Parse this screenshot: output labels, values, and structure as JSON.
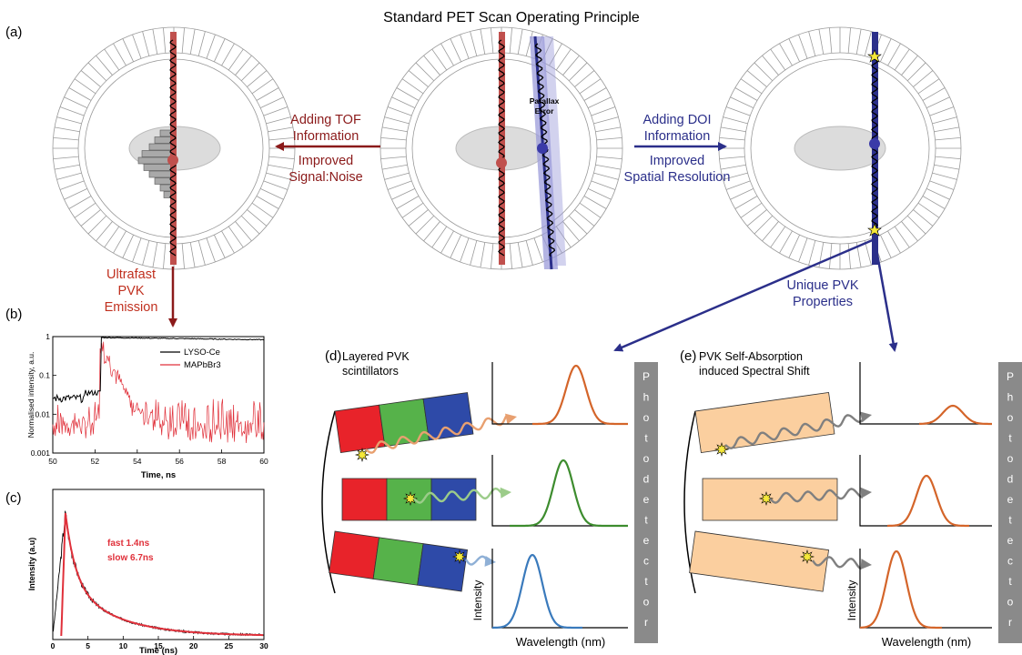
{
  "title": "Standard PET Scan Operating Principle",
  "panels": {
    "a": "(a)",
    "b": "(b)",
    "c": "(c)",
    "d": "(d)",
    "e": "(e)"
  },
  "arrows": {
    "tof_line1": "Adding TOF",
    "tof_line2": "Information",
    "tof_sub1": "Improved",
    "tof_sub2": "Signal:Noise",
    "doi_line1": "Adding DOI",
    "doi_line2": "Information",
    "doi_sub1": "Improved",
    "doi_sub2": "Spatial Resolution",
    "parallax1": "Parallax",
    "parallax2": "Error",
    "ultra1": "Ultrafast",
    "ultra2": "PVK",
    "ultra3": "Emission",
    "unique1": "Unique PVK",
    "unique2": "Properties"
  },
  "colors": {
    "red": "#8b1a1a",
    "navy": "#2b2f8a",
    "lor": "#c0504d",
    "detector": "#8a8a8a"
  },
  "panel_d": {
    "title1": "Layered PVK",
    "title2": "scintillators",
    "photodetector": "Photodetector",
    "ylabel": "Intensity",
    "xlabel": "Wavelength (nm)"
  },
  "panel_e": {
    "title1": "PVK Self-Absorption",
    "title2": "induced Spectral Shift",
    "photodetector": "Photodetector",
    "ylabel": "Intensity",
    "xlabel": "Wavelength (nm)"
  },
  "chart_data": [
    {
      "type": "line",
      "panel": "b",
      "xlabel": "Time, ns",
      "ylabel": "Normalised intensity, a.u.",
      "xlim": [
        50,
        60
      ],
      "ylim": [
        0.001,
        1
      ],
      "yscale": "log",
      "xticks": [
        50,
        52,
        54,
        56,
        58,
        60
      ],
      "yticks": [
        "0.001",
        "0.01",
        "0.1",
        "1"
      ],
      "legend_position": "top-right",
      "series": [
        {
          "name": "LYSO-Ce",
          "color": "#000000",
          "x": [
            50,
            51,
            52,
            52.3,
            53,
            54,
            56,
            58,
            60
          ],
          "y": [
            0.02,
            0.025,
            0.03,
            0.9,
            0.95,
            0.92,
            0.88,
            0.85,
            0.8
          ]
        },
        {
          "name": "MAPbBr3",
          "color": "#e0303a",
          "x": [
            50,
            51,
            52,
            52.2,
            52.5,
            53,
            54,
            56,
            58,
            60
          ],
          "y": [
            0.005,
            0.005,
            0.005,
            0.8,
            0.2,
            0.05,
            0.01,
            0.006,
            0.005,
            0.005
          ]
        }
      ]
    },
    {
      "type": "line",
      "panel": "c",
      "xlabel": "Time (ns)",
      "ylabel": "Intensity (a.u)",
      "xlim": [
        0,
        30
      ],
      "xticks": [
        0,
        5,
        10,
        15,
        20,
        25,
        30
      ],
      "annotation1": "fast 1.4ns",
      "annotation2": "slow 6.7ns",
      "series": [
        {
          "name": "",
          "color": "#e0303a",
          "x": [
            0,
            1,
            1.8,
            3,
            5,
            8,
            12,
            16,
            20,
            25,
            30
          ],
          "y": [
            0.05,
            0.6,
            1.0,
            0.65,
            0.38,
            0.2,
            0.1,
            0.06,
            0.04,
            0.02,
            0.015
          ]
        }
      ]
    }
  ]
}
